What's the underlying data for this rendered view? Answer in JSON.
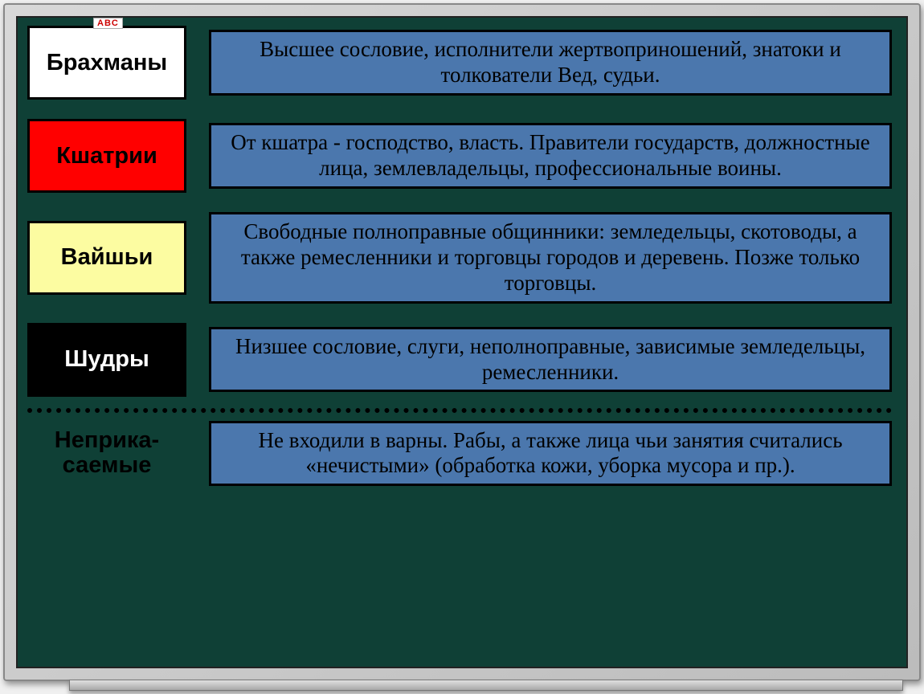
{
  "abc_tag": "ABC",
  "colors": {
    "board_bg": "#0f4036",
    "desc_bg": "#4b77ad",
    "label_bgs": [
      "#ffffff",
      "#ff0000",
      "#fcfca1",
      "#000000"
    ],
    "label_fg": [
      "#000000",
      "#000000",
      "#000000",
      "#ffffff"
    ]
  },
  "rows": [
    {
      "label": "Брахманы",
      "desc": "Высшее сословие, исполнители жертвоприношений, знатоки и толкователи Вед, судьи."
    },
    {
      "label": "Кшатрии",
      "desc": "От кшатра - господство, власть. Правители государств, должностные лица, землевладельцы, профессиональные воины."
    },
    {
      "label": "Вайшьи",
      "desc": "Свободные полноправные общинники: земледельцы, скотоводы, а также ремесленники и торговцы городов и деревень. Позже только торговцы."
    },
    {
      "label": "Шудры",
      "desc": "Низшее сословие, слуги, неполноправные, зависимые земледельцы, ремесленники."
    }
  ],
  "bottom": {
    "label": "Неприка-\nсаемые",
    "desc": "Не входили в варны. Рабы, а также лица чьи занятия считались «нечистыми» (обработка кожи, уборка мусора и пр.)."
  }
}
